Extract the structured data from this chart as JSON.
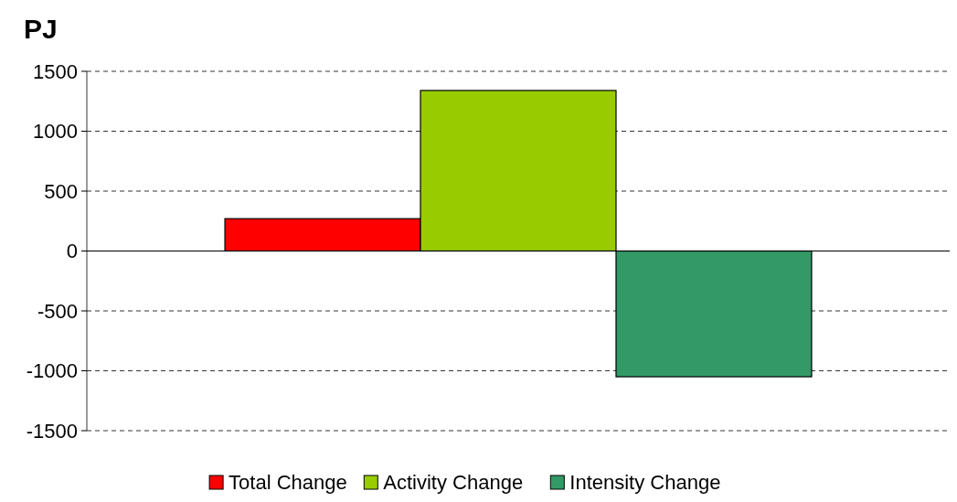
{
  "chart_data": {
    "type": "bar",
    "ylabel": "PJ",
    "categories": [
      null
    ],
    "series": [
      {
        "name": "Total Change",
        "color": "#ff0000",
        "values": [
          270
        ]
      },
      {
        "name": "Activity Change",
        "color": "#99cc00",
        "values": [
          1340
        ]
      },
      {
        "name": "Intensity Change",
        "color": "#339966",
        "values": [
          -1050
        ]
      }
    ],
    "ylim": [
      -1500,
      1500
    ],
    "yticks": [
      -1500,
      -1000,
      -500,
      0,
      500,
      1000,
      1500
    ],
    "grid": "y",
    "legend": "bottom"
  }
}
